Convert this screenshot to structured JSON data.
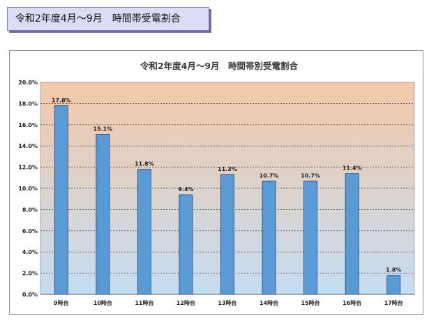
{
  "banner": {
    "text": "令和2年度4月～9月　時間帯受電割合"
  },
  "colors": {
    "bar_fill": "#5b9bd5",
    "bar_stroke": "#1f3f6e",
    "plot_top": "#f5c8a8",
    "plot_bottom": "#c4ddf2",
    "banner_bg": "#dcdcf6"
  },
  "chart_data": {
    "type": "bar",
    "title": "令和2年度4月～9月　時間帯別受電割合",
    "categories": [
      "9時台",
      "10時台",
      "11時台",
      "12時台",
      "13時台",
      "14時台",
      "15時台",
      "16時台",
      "17時台"
    ],
    "values": [
      17.8,
      15.1,
      11.8,
      9.4,
      11.3,
      10.7,
      10.7,
      11.4,
      1.8
    ],
    "data_labels": [
      "17.8%",
      "15.1%",
      "11.8%",
      "9.4%",
      "11.3%",
      "10.7%",
      "10.7%",
      "11.4%",
      "1.8%"
    ],
    "yticks": [
      "0.0%",
      "2.0%",
      "4.0%",
      "6.0%",
      "8.0%",
      "10.0%",
      "12.0%",
      "14.0%",
      "16.0%",
      "18.0%",
      "20.0%"
    ],
    "ylim": [
      0,
      20
    ],
    "xlabel": "",
    "ylabel": "",
    "grid": true,
    "legend": "none"
  }
}
